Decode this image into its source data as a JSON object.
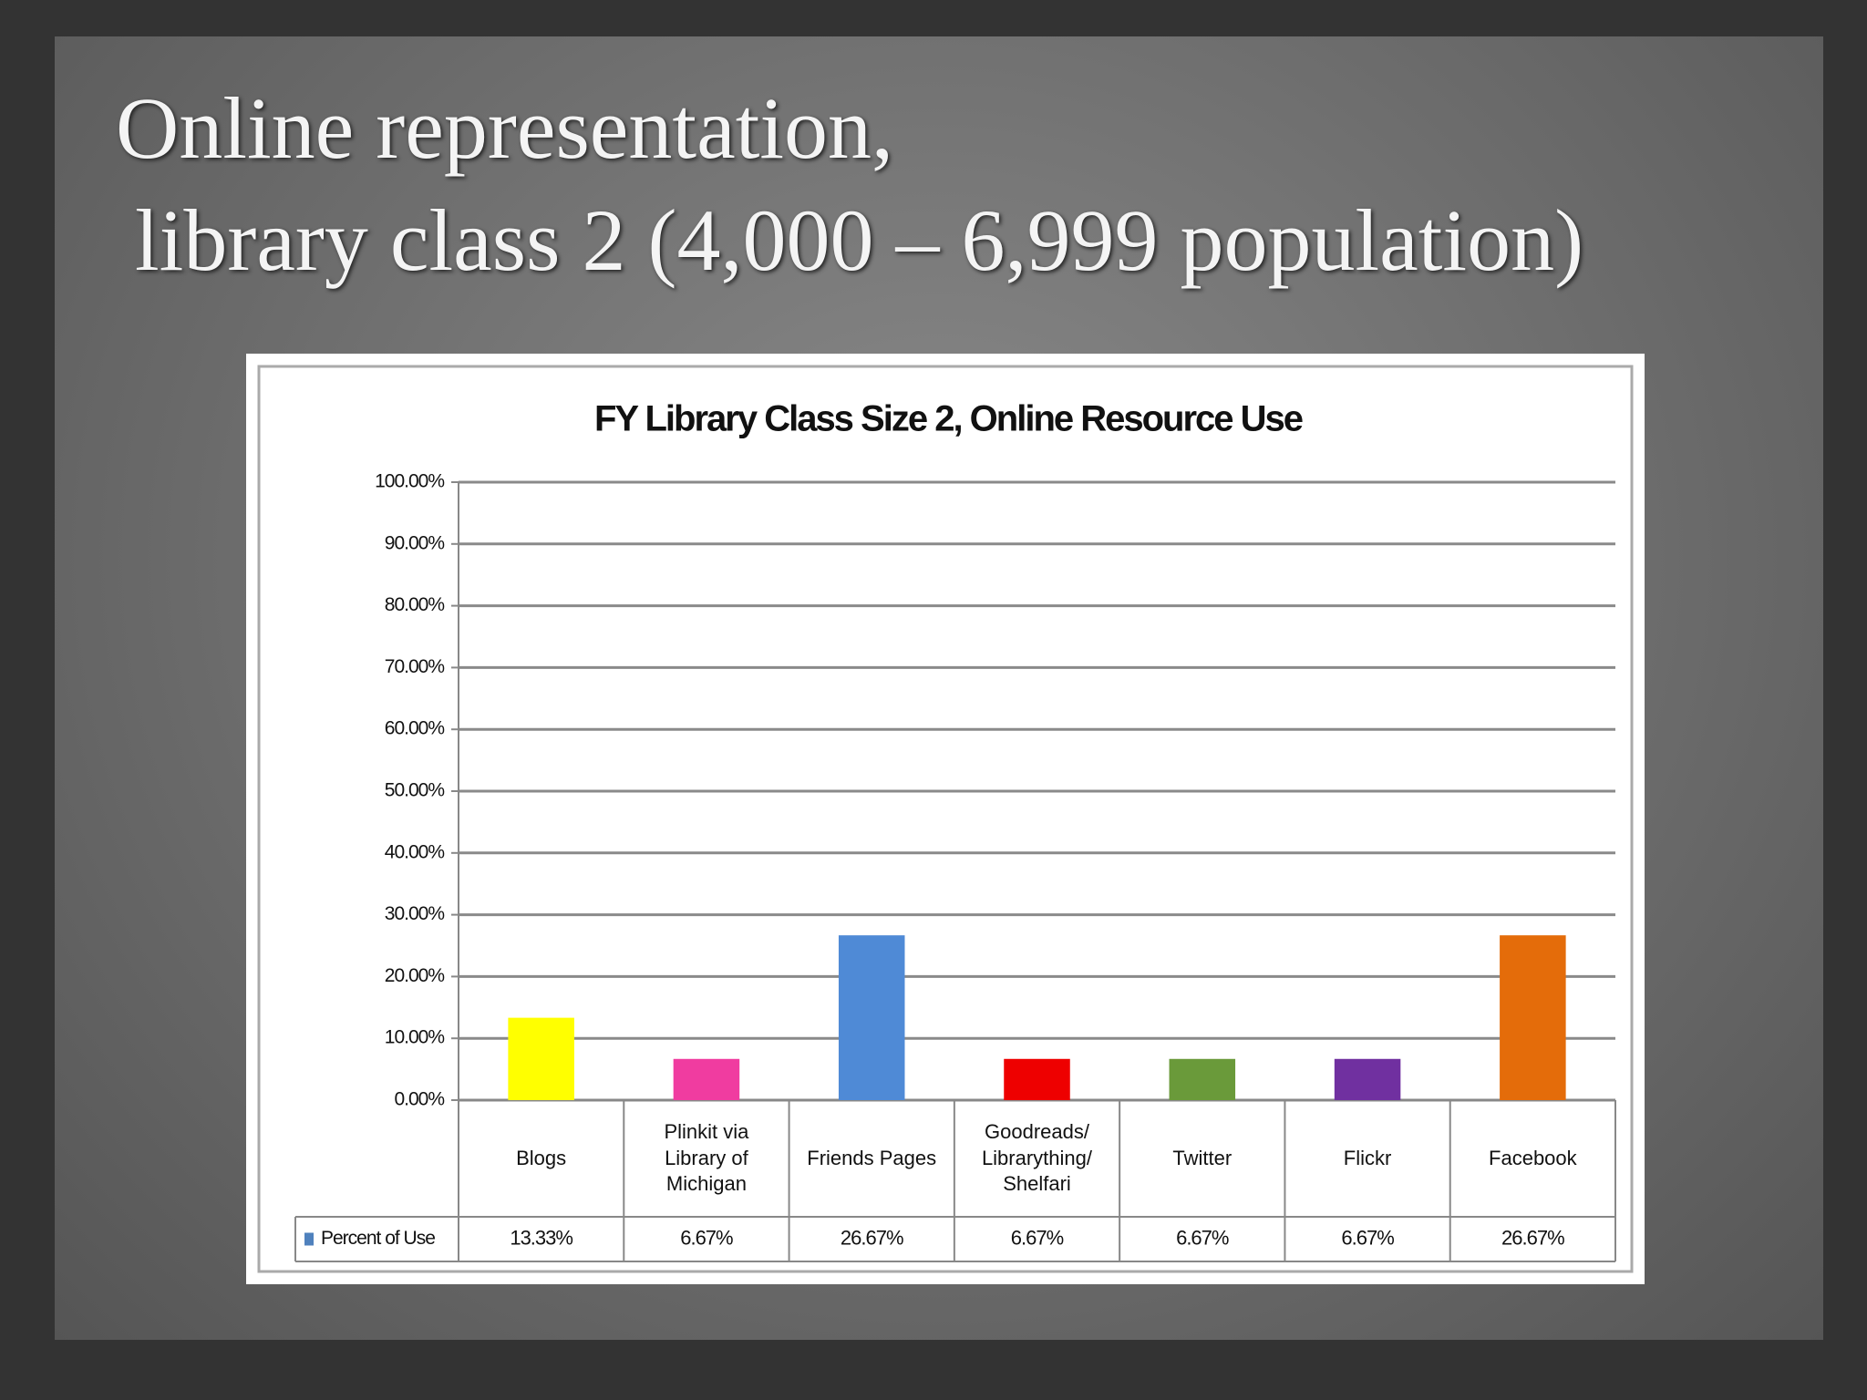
{
  "slide_title": [
    "Online representation,",
    "library class 2 (4,000 – 6,999 population)"
  ],
  "chart_data": {
    "type": "bar",
    "title": "FY Library Class Size 2, Online Resource Use",
    "categories": [
      "Blogs",
      "Plinkit via Library of Michigan",
      "Friends Pages",
      "Goodreads/ Librarything/ Shelfari",
      "Twitter",
      "Flickr",
      "Facebook"
    ],
    "series": [
      {
        "name": "Percent of Use",
        "color": "#4f81bd",
        "colors": [
          "#ffff00",
          "#f03ca0",
          "#4f8ad6",
          "#ee0000",
          "#6a9a3a",
          "#7030a0",
          "#e46c0a"
        ],
        "values": [
          13.33,
          6.67,
          26.67,
          6.67,
          6.67,
          6.67,
          26.67
        ],
        "value_labels": [
          "13.33%",
          "6.67%",
          "26.67%",
          "6.67%",
          "6.67%",
          "6.67%",
          "26.67%"
        ]
      }
    ],
    "ylim": [
      0,
      100
    ],
    "yticks": [
      {
        "value": 0,
        "label": "0.00%"
      },
      {
        "value": 10,
        "label": "10.00%"
      },
      {
        "value": 20,
        "label": "20.00%"
      },
      {
        "value": 30,
        "label": "30.00%"
      },
      {
        "value": 40,
        "label": "40.00%"
      },
      {
        "value": 50,
        "label": "50.00%"
      },
      {
        "value": 60,
        "label": "60.00%"
      },
      {
        "value": 70,
        "label": "70.00%"
      },
      {
        "value": 80,
        "label": "80.00%"
      },
      {
        "value": 90,
        "label": "90.00%"
      },
      {
        "value": 100,
        "label": "100.00%"
      }
    ],
    "grid": true
  }
}
